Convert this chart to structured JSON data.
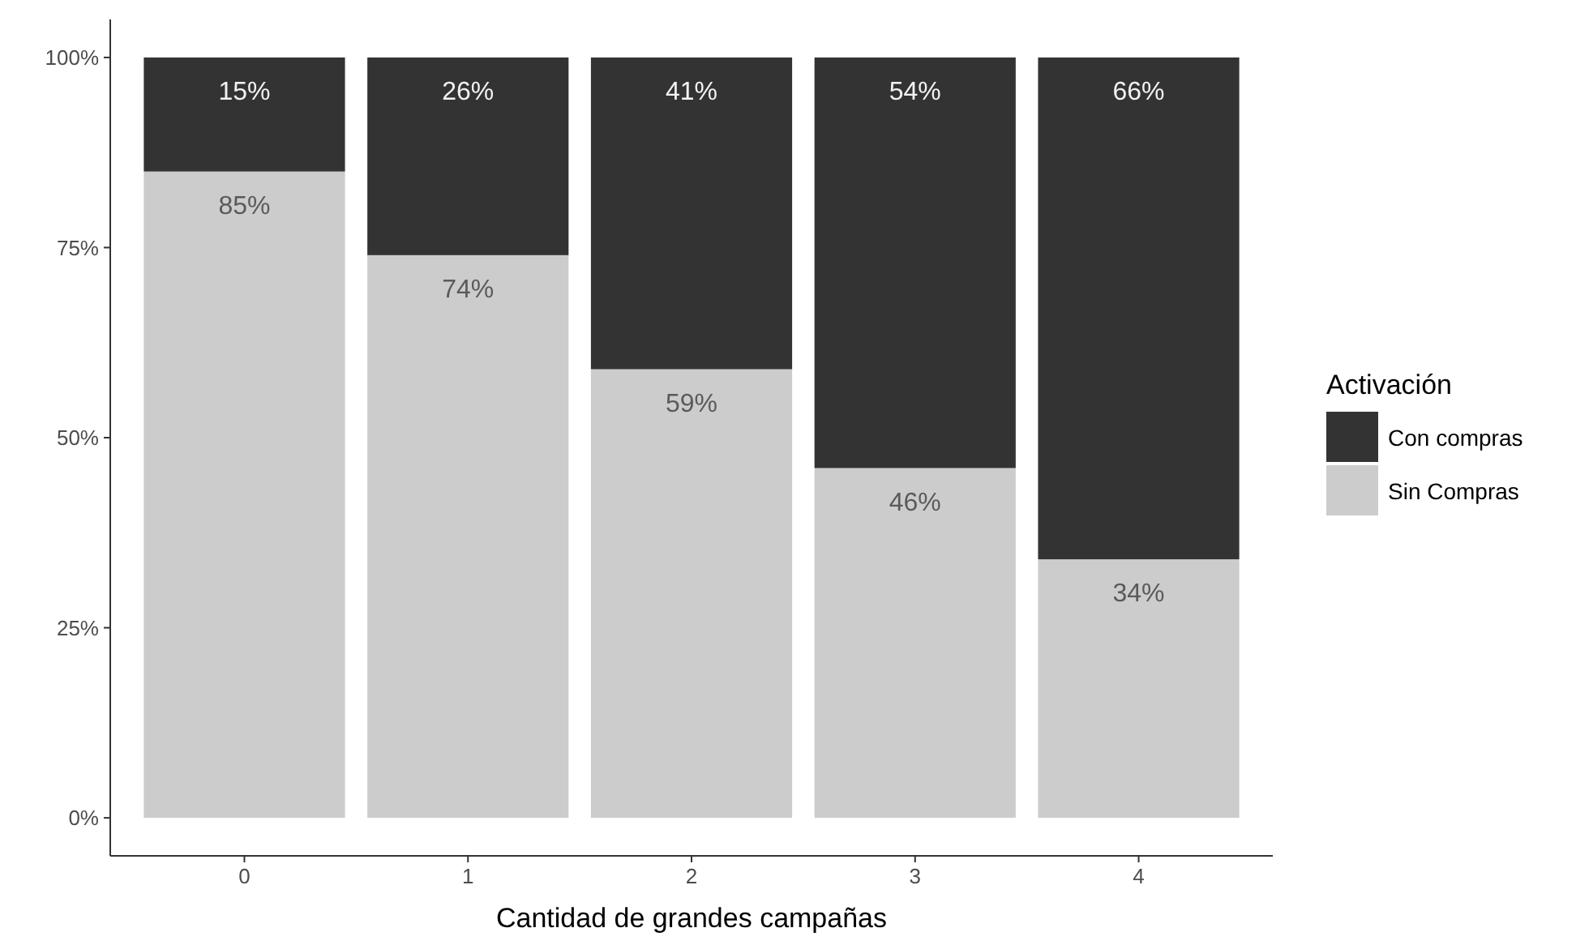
{
  "chart_data": {
    "type": "bar",
    "stacked": true,
    "xlabel": "Cantidad de grandes campañas",
    "legend_title": "Activación",
    "legend": "right",
    "grid": false,
    "categories": [
      "0",
      "1",
      "2",
      "3",
      "4"
    ],
    "ylim": [
      -5,
      105
    ],
    "yticks": [
      {
        "value": 0,
        "label": "0%"
      },
      {
        "value": 25,
        "label": "25%"
      },
      {
        "value": 50,
        "label": "50%"
      },
      {
        "value": 75,
        "label": "75%"
      },
      {
        "value": 100,
        "label": "100%"
      }
    ],
    "series": [
      {
        "name": "Sin Compras",
        "color": "#cccccc",
        "values": [
          85,
          74,
          59,
          46,
          34
        ],
        "value_labels": [
          "85%",
          "74%",
          "59%",
          "46%",
          "34%"
        ]
      },
      {
        "name": "Con compras",
        "color": "#333333",
        "values": [
          15,
          26,
          41,
          54,
          66
        ],
        "value_labels": [
          "15%",
          "26%",
          "41%",
          "54%",
          "66%"
        ]
      }
    ]
  }
}
